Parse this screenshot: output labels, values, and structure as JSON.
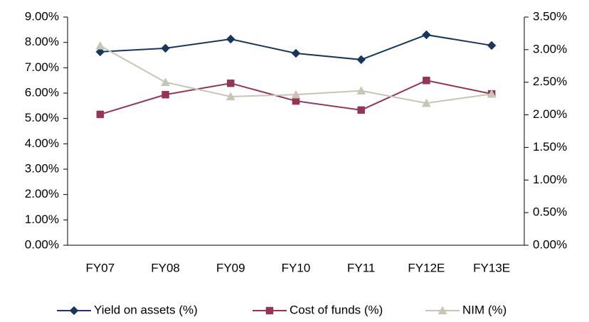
{
  "chart_data": {
    "type": "line",
    "categories": [
      "FY07",
      "FY08",
      "FY09",
      "FY10",
      "FY11",
      "FY12E",
      "FY13E"
    ],
    "series": [
      {
        "name": "Yield on assets (%)",
        "color": "#17375e",
        "marker": "diamond",
        "values": [
          7.63,
          7.77,
          8.13,
          7.57,
          7.32,
          8.3,
          7.88
        ]
      },
      {
        "name": "Cost of funds (%)",
        "color": "#953553",
        "marker": "square",
        "values": [
          5.16,
          5.94,
          6.39,
          5.69,
          5.33,
          6.5,
          5.97
        ]
      },
      {
        "name": "NIM (%)",
        "color": "#c8c5b4",
        "marker": "triangle",
        "axis": "y2",
        "values": [
          3.06,
          2.5,
          2.28,
          2.31,
          2.37,
          2.18,
          2.32
        ]
      }
    ],
    "ylim": [
      0,
      9
    ],
    "yticks": [
      {
        "value": 0,
        "label": "0.00%"
      },
      {
        "value": 1,
        "label": "1.00%"
      },
      {
        "value": 2,
        "label": "2.00%"
      },
      {
        "value": 3,
        "label": "3.00%"
      },
      {
        "value": 4,
        "label": "4.00%"
      },
      {
        "value": 5,
        "label": "5.00%"
      },
      {
        "value": 6,
        "label": "6.00%"
      },
      {
        "value": 7,
        "label": "7.00%"
      },
      {
        "value": 8,
        "label": "8.00%"
      },
      {
        "value": 9,
        "label": "9.00%"
      }
    ],
    "y2lim": [
      0,
      3.5
    ],
    "y2ticks": [
      {
        "value": 0,
        "label": "0.00%"
      },
      {
        "value": 0.5,
        "label": "0.50%"
      },
      {
        "value": 1,
        "label": "1.00%"
      },
      {
        "value": 1.5,
        "label": "1.50%"
      },
      {
        "value": 2,
        "label": "2.00%"
      },
      {
        "value": 2.5,
        "label": "2.50%"
      },
      {
        "value": 3,
        "label": "3.00%"
      },
      {
        "value": 3.5,
        "label": "3.50%"
      }
    ],
    "grid": false,
    "legend": "bottom"
  }
}
